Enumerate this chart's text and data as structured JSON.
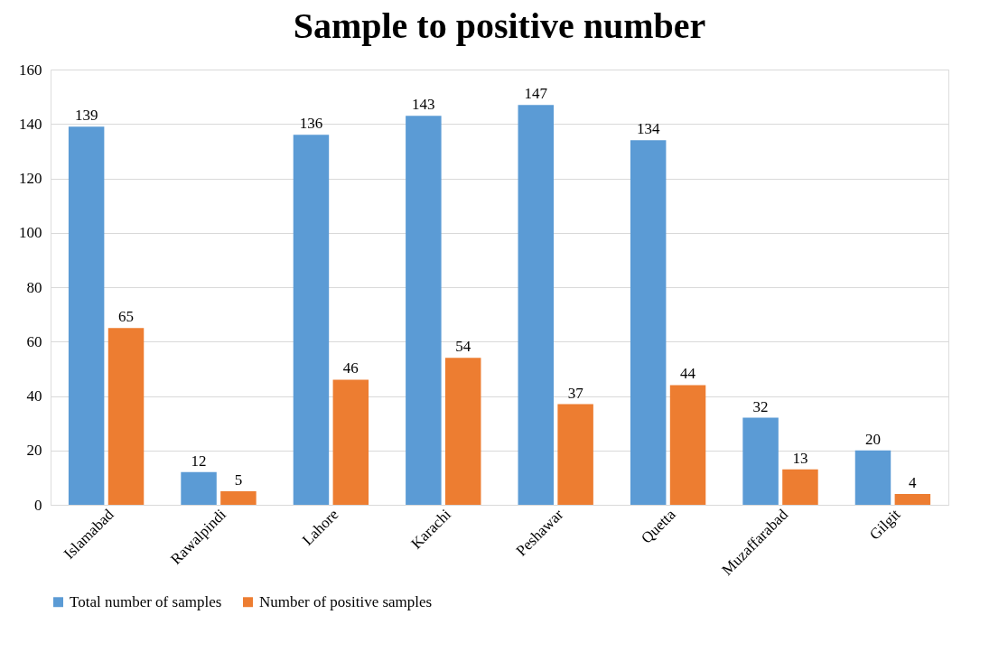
{
  "chart_data": {
    "type": "bar",
    "title": "Sample to positive number",
    "categories": [
      "Islamabad",
      "Rawalpindi",
      "Lahore",
      "Karachi",
      "Peshawar",
      "Quetta",
      "Muzaffarabad",
      "Gilgit"
    ],
    "series": [
      {
        "name": "Total number of samples",
        "color": "#5b9bd5",
        "values": [
          139,
          12,
          136,
          143,
          147,
          134,
          32,
          20
        ]
      },
      {
        "name": "Number of positive samples",
        "color": "#ed7d31",
        "values": [
          65,
          5,
          46,
          54,
          37,
          44,
          13,
          4
        ]
      }
    ],
    "ylim": [
      0,
      160
    ],
    "yticks": [
      0,
      20,
      40,
      60,
      80,
      100,
      120,
      140,
      160
    ],
    "grid": "y",
    "legend": "bottom",
    "data_labels": true
  }
}
